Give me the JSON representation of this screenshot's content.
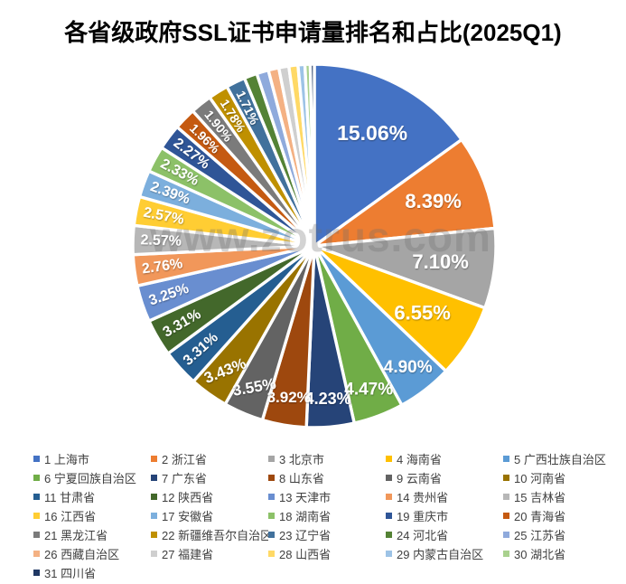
{
  "chart_data": {
    "type": "pie",
    "title": "各省级政府SSL证书申请量排名和占比(2025Q1)",
    "watermark": "www.zotrus.com",
    "start_angle_deg": 0,
    "direction": "clockwise",
    "legend_position": "bottom",
    "legend_columns": 5,
    "slices": [
      {
        "rank": 1,
        "name": "上海市",
        "value": 15.06,
        "label": "15.06%",
        "color": "#4472C4"
      },
      {
        "rank": 2,
        "name": "浙江省",
        "value": 8.39,
        "label": "8.39%",
        "color": "#ED7D31"
      },
      {
        "rank": 3,
        "name": "北京市",
        "value": 7.1,
        "label": "7.10%",
        "color": "#A5A5A5"
      },
      {
        "rank": 4,
        "name": "海南省",
        "value": 6.55,
        "label": "6.55%",
        "color": "#FFC000"
      },
      {
        "rank": 5,
        "name": "广西壮族自治区",
        "value": 4.9,
        "label": "4.90%",
        "color": "#5B9BD5"
      },
      {
        "rank": 6,
        "name": "宁夏回族自治区",
        "value": 4.47,
        "label": "4.47%",
        "color": "#70AD47"
      },
      {
        "rank": 7,
        "name": "广东省",
        "value": 4.23,
        "label": "4.23%",
        "color": "#264478"
      },
      {
        "rank": 8,
        "name": "山东省",
        "value": 3.92,
        "label": "3.92%",
        "color": "#9E480E"
      },
      {
        "rank": 9,
        "name": "云南省",
        "value": 3.55,
        "label": "3.55%",
        "color": "#636363"
      },
      {
        "rank": 10,
        "name": "河南省",
        "value": 3.43,
        "label": "3.43%",
        "color": "#997300"
      },
      {
        "rank": 11,
        "name": "甘肃省",
        "value": 3.31,
        "label": "3.31%",
        "color": "#255E91"
      },
      {
        "rank": 12,
        "name": "陕西省",
        "value": 3.31,
        "label": "3.31%",
        "color": "#43682B"
      },
      {
        "rank": 13,
        "name": "天津市",
        "value": 3.25,
        "label": "3.25%",
        "color": "#698ED0"
      },
      {
        "rank": 14,
        "name": "贵州省",
        "value": 2.76,
        "label": "2.76%",
        "color": "#F1975A"
      },
      {
        "rank": 15,
        "name": "吉林省",
        "value": 2.57,
        "label": "2.57%",
        "color": "#B7B7B7"
      },
      {
        "rank": 16,
        "name": "江西省",
        "value": 2.57,
        "label": "2.57%",
        "color": "#FFCD33"
      },
      {
        "rank": 17,
        "name": "安徽省",
        "value": 2.39,
        "label": "2.39%",
        "color": "#7CAFDD"
      },
      {
        "rank": 18,
        "name": "湖南省",
        "value": 2.33,
        "label": "2.33%",
        "color": "#8CC168"
      },
      {
        "rank": 19,
        "name": "重庆市",
        "value": 2.27,
        "label": "2.27%",
        "color": "#2F5597"
      },
      {
        "rank": 20,
        "name": "青海省",
        "value": 1.96,
        "label": "1.96%",
        "color": "#C55A11"
      },
      {
        "rank": 21,
        "name": "黑龙江省",
        "value": 1.9,
        "label": "1.90%",
        "color": "#7B7B7B"
      },
      {
        "rank": 22,
        "name": "新疆维吾尔自治区",
        "value": 1.78,
        "label": "1.78%",
        "color": "#BF9000"
      },
      {
        "rank": 23,
        "name": "辽宁省",
        "value": 1.71,
        "label": "1.71%",
        "color": "#41719C"
      },
      {
        "rank": 24,
        "name": "河北省",
        "value": 1.15,
        "label": "",
        "estimated": true,
        "color": "#548235"
      },
      {
        "rank": 25,
        "name": "江苏省",
        "value": 1.06,
        "label": "",
        "estimated": true,
        "color": "#8FAADC"
      },
      {
        "rank": 26,
        "name": "西藏自治区",
        "value": 0.94,
        "label": "",
        "estimated": true,
        "color": "#F4B183"
      },
      {
        "rank": 27,
        "name": "福建省",
        "value": 0.89,
        "label": "",
        "estimated": true,
        "color": "#CFCFCF"
      },
      {
        "rank": 28,
        "name": "山西省",
        "value": 0.81,
        "label": "",
        "estimated": true,
        "color": "#FFD966"
      },
      {
        "rank": 29,
        "name": "内蒙古自治区",
        "value": 0.61,
        "label": "",
        "estimated": true,
        "color": "#9DC3E6"
      },
      {
        "rank": 30,
        "name": "湖北省",
        "value": 0.47,
        "label": "",
        "estimated": true,
        "color": "#A9D18E"
      },
      {
        "rank": 31,
        "name": "四川省",
        "value": 0.36,
        "label": "",
        "estimated": true,
        "color": "#203864"
      }
    ]
  }
}
